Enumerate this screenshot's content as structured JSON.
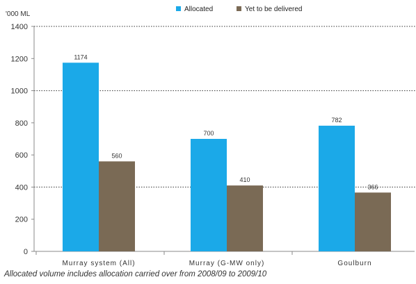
{
  "chart_data": {
    "type": "bar",
    "y_unit_label": "'000 ML",
    "categories": [
      "Murray system (All)",
      "Murray (G-MW only)",
      "Goulburn"
    ],
    "series": [
      {
        "name": "Allocated",
        "color": "#1BA9E8",
        "values": [
          1174,
          700,
          782
        ]
      },
      {
        "name": "Yet to be delivered",
        "color": "#7A6A55",
        "values": [
          560,
          410,
          366
        ]
      }
    ],
    "ylim": [
      0,
      1400
    ],
    "yticks": [
      0,
      200,
      400,
      600,
      800,
      1000,
      1200,
      1400
    ],
    "grid": "dotted horizontal lines at 400, 1000, 1400",
    "legend_position": "top-center"
  },
  "footnote": "Allocated volume includes allocation carried over from 2008/09 to 2009/10"
}
